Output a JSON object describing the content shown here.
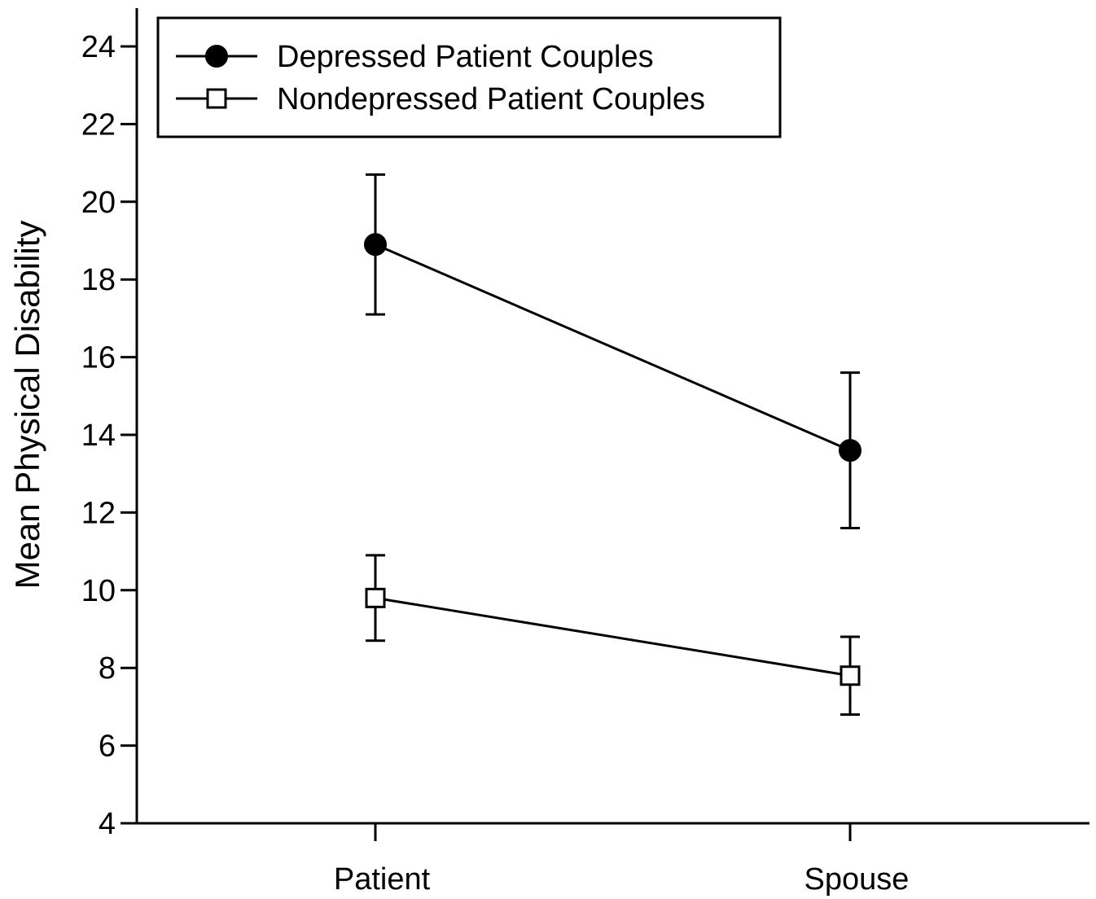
{
  "chart_data": {
    "type": "line",
    "title": "",
    "xlabel": "",
    "ylabel": "Mean Physical Disability",
    "categories": [
      "Patient",
      "Spouse"
    ],
    "ylim": [
      4,
      24
    ],
    "yticks": [
      4,
      6,
      8,
      10,
      12,
      14,
      16,
      18,
      20,
      22,
      24
    ],
    "grid": false,
    "legend_position": "top-left",
    "error_bars": true,
    "series": [
      {
        "name": "Depressed Patient Couples",
        "marker": "filled-circle",
        "color": "#000000",
        "values": [
          18.9,
          13.6
        ],
        "error": [
          1.8,
          2.0
        ]
      },
      {
        "name": "Nondepressed Patient Couples",
        "marker": "open-square",
        "color": "#000000",
        "values": [
          9.8,
          7.8
        ],
        "error": [
          1.1,
          1.0
        ]
      }
    ]
  }
}
